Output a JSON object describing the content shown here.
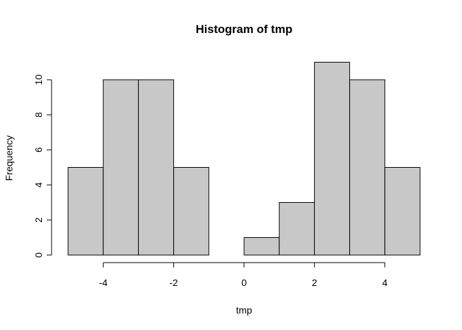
{
  "chart_data": {
    "type": "bar",
    "title": "Histogram of tmp",
    "xlabel": "tmp",
    "ylabel": "Frequency",
    "bins": [
      {
        "start": -5,
        "end": -4,
        "count": 5
      },
      {
        "start": -4,
        "end": -3,
        "count": 10
      },
      {
        "start": -3,
        "end": -2,
        "count": 10
      },
      {
        "start": -2,
        "end": -1,
        "count": 5
      },
      {
        "start": -1,
        "end": 0,
        "count": 0
      },
      {
        "start": 0,
        "end": 1,
        "count": 1
      },
      {
        "start": 1,
        "end": 2,
        "count": 3
      },
      {
        "start": 2,
        "end": 3,
        "count": 11
      },
      {
        "start": 3,
        "end": 4,
        "count": 10
      },
      {
        "start": 4,
        "end": 5,
        "count": 5
      }
    ],
    "xlim": [
      -5,
      5
    ],
    "ylim": [
      0,
      11
    ],
    "x_ticks": [
      -4,
      -2,
      0,
      2,
      4
    ],
    "x_tick_labels": [
      "-4",
      "-2",
      "0",
      "2",
      "4"
    ],
    "y_ticks": [
      0,
      2,
      4,
      6,
      8,
      10
    ],
    "y_tick_labels": [
      "0",
      "2",
      "4",
      "6",
      "8",
      "10"
    ],
    "bar_color": "#c8c8c8",
    "bar_edge_color": "#000000",
    "grid": false
  }
}
